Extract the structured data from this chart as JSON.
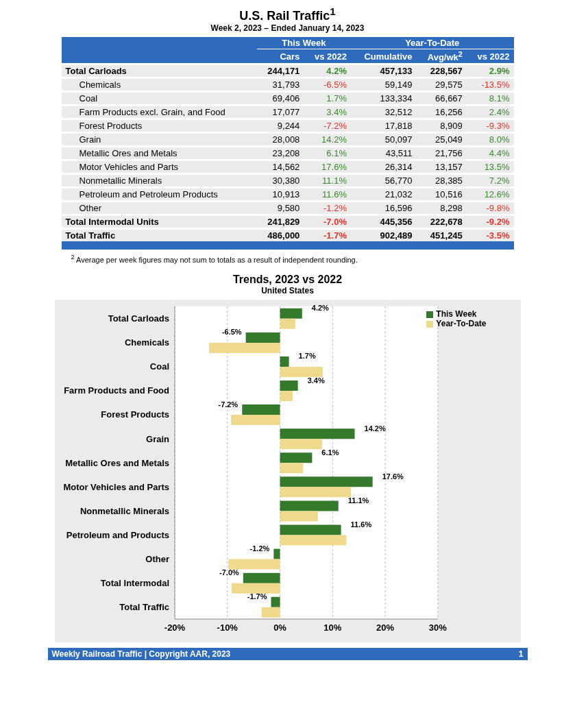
{
  "chart_data": [
    {
      "type": "other",
      "title": "U.S. Rail Traffic$^{1}$",
      "subtitle": "Week 2, 2023 – Ended January 14, 2023",
      "legend_title": "This Week",
      "annotations": [
        "Year-To-Date",
        "$^{2}$ Average per week figures may not sum to totals as a result of independent rounding."
      ],
      "categories": [
        "Total Carloads",
        "Chemicals",
        "Coal",
        "Farm Products excl. Grain, and Food",
        "Forest Products",
        "Grain",
        "Metallic Ores and Metals",
        "Motor Vehicles and Parts",
        "Nonmetallic Minerals",
        "Petroleum and Petroleum Products",
        "Other",
        "Total Intermodal Units",
        "Total Traffic"
      ],
      "series": [
        {
          "name": "Cars",
          "values": [
            244171,
            31793,
            69406,
            17077,
            9244,
            28008,
            23208,
            14562,
            30380,
            10913,
            9580,
            241829,
            486000
          ],
          "value_labels": [
            "244,171",
            "31,793",
            "69,406",
            "17,077",
            "9,244",
            "28,008",
            "23,208",
            "14,562",
            "30,380",
            "10,913",
            "9,580",
            "241,829",
            "486,000"
          ]
        },
        {
          "name": "vs 2022",
          "values": [
            4.2,
            -6.5,
            1.7,
            3.4,
            -7.2,
            14.2,
            6.1,
            17.6,
            11.1,
            11.6,
            -1.2,
            -7.0,
            -1.7
          ],
          "value_labels": [
            "4.2%",
            "-6.5%",
            "1.7%",
            "3.4%",
            "-7.2%",
            "14.2%",
            "6.1%",
            "17.6%",
            "11.1%",
            "11.6%",
            "-1.2%",
            "-7.0%",
            "-1.7%"
          ],
          "colors": [
            "#3a8a2e",
            "#e8332a",
            "#3a8a2e",
            "#3a8a2e",
            "#e8332a",
            "#3a8a2e",
            "#3a8a2e",
            "#3a8a2e",
            "#3a8a2e",
            "#3a8a2e",
            "#e8332a",
            "#e8332a",
            "#e8332a"
          ]
        },
        {
          "name": "Cumulative",
          "values": [
            457133,
            59149,
            133334,
            32512,
            17818,
            50097,
            43511,
            26314,
            56770,
            21032,
            16596,
            445356,
            902489
          ],
          "value_labels": [
            "457,133",
            "59,149",
            "133,334",
            "32,512",
            "17,818",
            "50,097",
            "43,511",
            "26,314",
            "56,770",
            "21,032",
            "16,596",
            "445,356",
            "902,489"
          ]
        },
        {
          "name": "Avg/wk$^{2}$",
          "values": [
            228567,
            29575,
            66667,
            16256,
            8909,
            25049,
            21756,
            13157,
            28385,
            10516,
            8298,
            222678,
            451245
          ],
          "value_labels": [
            "228,567",
            "29,575",
            "66,667",
            "16,256",
            "8,909",
            "25,049",
            "21,756",
            "13,157",
            "28,385",
            "10,516",
            "8,298",
            "222,678",
            "451,245"
          ]
        },
        {
          "name": "vs 2022",
          "values": [
            2.9,
            -13.5,
            8.1,
            2.4,
            -9.3,
            8.0,
            4.4,
            13.5,
            7.2,
            12.6,
            -9.8,
            -9.2,
            -3.5
          ],
          "value_labels": [
            "2.9%",
            "-13.5%",
            "8.1%",
            "2.4%",
            "-9.3%",
            "8.0%",
            "4.4%",
            "13.5%",
            "7.2%",
            "12.6%",
            "-9.8%",
            "-9.2%",
            "-3.5%"
          ],
          "colors": [
            "#3a8a2e",
            "#e8332a",
            "#3a8a2e",
            "#3a8a2e",
            "#e8332a",
            "#3a8a2e",
            "#3a8a2e",
            "#3a8a2e",
            "#3a8a2e",
            "#3a8a2e",
            "#e8332a",
            "#e8332a",
            "#e8332a"
          ]
        }
      ]
    },
    {
      "type": "bar",
      "orientation": "horizontal",
      "title": "Trends, 2023 vs 2022",
      "subtitle": "United States",
      "categories": [
        "Total Carloads",
        "Chemicals",
        "Coal",
        "Farm Products and Food",
        "Forest Products",
        "Grain",
        "Metallic Ores and Metals",
        "Motor Vehicles and Parts",
        "Nonmetallic Minerals",
        "Petroleum and Products",
        "Other",
        "Total Intermodal",
        "Total Traffic"
      ],
      "series": [
        {
          "name": "This Week",
          "color": "#357a2c",
          "values": [
            4.2,
            -6.5,
            1.7,
            3.4,
            -7.2,
            14.2,
            6.1,
            17.6,
            11.1,
            11.6,
            -1.2,
            -7.0,
            -1.7
          ],
          "value_labels": [
            "4.2%",
            "-6.5%",
            "1.7%",
            "3.4%",
            "-7.2%",
            "14.2%",
            "6.1%",
            "17.6%",
            "11.1%",
            "11.6%",
            "-1.2%",
            "-7.0%",
            "-1.7%"
          ]
        },
        {
          "name": "Year-To-Date",
          "color": "#efd98c",
          "values": [
            2.9,
            -13.5,
            8.1,
            2.4,
            -9.3,
            8.0,
            4.4,
            13.5,
            7.2,
            12.6,
            -9.8,
            -9.2,
            -3.5
          ]
        }
      ],
      "xlim": [
        -20,
        30
      ],
      "xticks": [
        {
          "value": -20,
          "label": "-20%"
        },
        {
          "value": -10,
          "label": "-10%"
        },
        {
          "value": 0,
          "label": "0%"
        },
        {
          "value": 10,
          "label": "10%"
        },
        {
          "value": 20,
          "label": "20%"
        },
        {
          "value": 30,
          "label": "30%"
        }
      ],
      "grid": "x",
      "legend": "top right",
      "annotations": [
        "Weekly Railroad Traffic | Copyright AAR, 2023",
        "1"
      ]
    }
  ]
}
